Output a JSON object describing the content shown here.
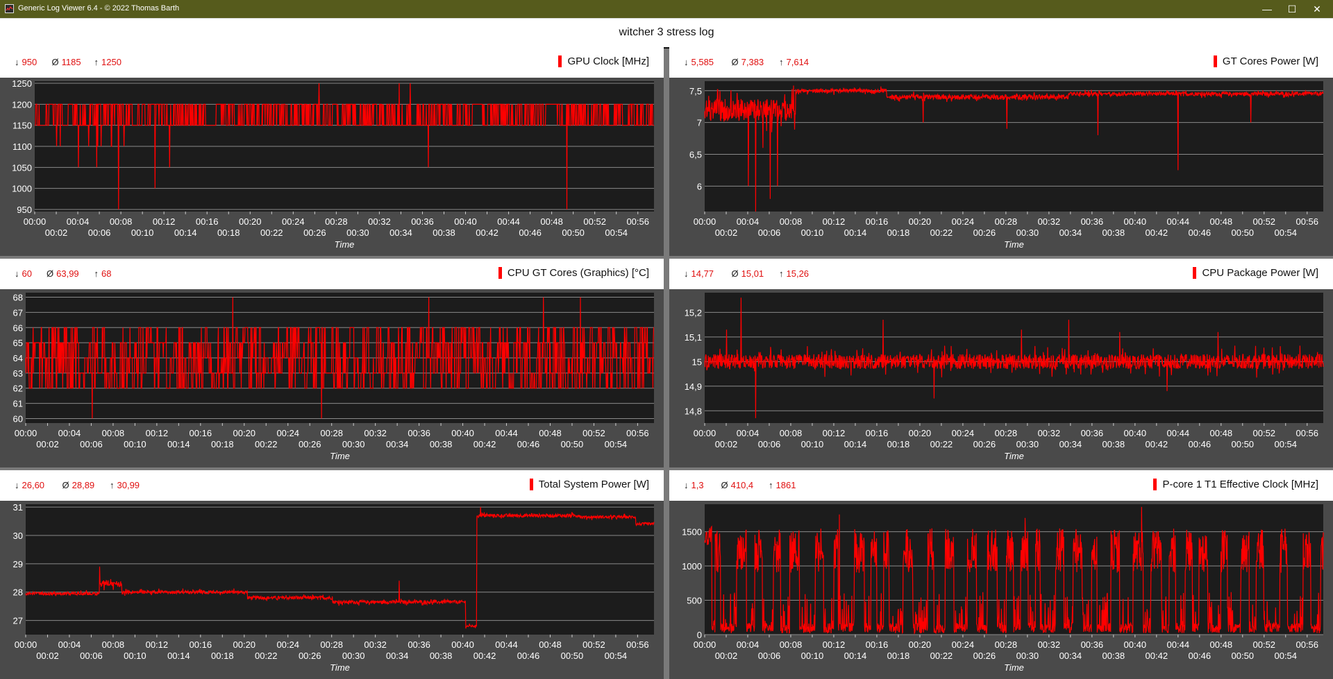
{
  "window": {
    "title": "Generic Log Viewer 6.4 - © 2022 Thomas Barth",
    "minimize": "—",
    "maximize": "☐",
    "close": "✕"
  },
  "log": {
    "title": "witcher 3 stress log"
  },
  "colors": {
    "series": "#ff0000",
    "plot_bg": "#1c1c1c",
    "panel_bg": "#4a4a4a",
    "grid": "#8a8a8a",
    "titlebar": "#565b1c"
  },
  "x_tick_labels": [
    "00:00",
    "00:02",
    "00:04",
    "00:06",
    "00:08",
    "00:10",
    "00:12",
    "00:14",
    "00:16",
    "00:18",
    "00:20",
    "00:22",
    "00:24",
    "00:26",
    "00:28",
    "00:30",
    "00:32",
    "00:34",
    "00:36",
    "00:38",
    "00:40",
    "00:42",
    "00:44",
    "00:46",
    "00:48",
    "00:50",
    "00:52",
    "00:54",
    "00:56"
  ],
  "chart_data": [
    {
      "type": "line",
      "title": "GPU Clock [MHz]",
      "xlabel": "Time",
      "stats": {
        "min": "950",
        "avg": "1185",
        "max": "1250"
      },
      "ylim": [
        945,
        1255
      ],
      "yticks": [
        950,
        1000,
        1050,
        1100,
        1150,
        1200,
        1250
      ],
      "ytick_labels": [
        "950",
        "1000",
        "1050",
        "1100",
        "1150",
        "1200",
        "1250"
      ],
      "pattern": "toggle",
      "base": 1150,
      "alt": 1200,
      "toggle_rate": 0.28,
      "spikes": [
        [
          120,
          1050
        ],
        [
          170,
          1050
        ],
        [
          230,
          950
        ],
        [
          330,
          1000
        ],
        [
          370,
          1050
        ],
        [
          780,
          1250
        ],
        [
          1000,
          1250
        ],
        [
          1030,
          1250
        ],
        [
          1080,
          1050
        ],
        [
          1460,
          950
        ]
      ],
      "minutes": 57.5
    },
    {
      "type": "line",
      "title": "GT Cores Power [W]",
      "xlabel": "Time",
      "stats": {
        "min": "5,585",
        "avg": "7,383",
        "max": "7,614"
      },
      "ylim": [
        5.6,
        7.65
      ],
      "yticks": [
        6,
        6.5,
        7,
        7.5
      ],
      "ytick_labels": [
        "6",
        "6,5",
        "7",
        "7,5"
      ],
      "pattern": "noise",
      "segments": [
        [
          0,
          7.2,
          0.35
        ],
        [
          250,
          7.5,
          0.06
        ],
        [
          500,
          7.4,
          0.08
        ],
        [
          1000,
          7.45,
          0.06
        ]
      ],
      "spikes": [
        [
          120,
          6.0
        ],
        [
          140,
          5.6
        ],
        [
          160,
          6.6
        ],
        [
          180,
          5.8
        ],
        [
          200,
          6.0
        ],
        [
          600,
          7.0
        ],
        [
          830,
          6.9
        ],
        [
          1080,
          6.8
        ],
        [
          1300,
          6.25
        ],
        [
          1500,
          7.0
        ]
      ],
      "minutes": 57.5
    },
    {
      "type": "line",
      "title": "CPU GT Cores (Graphics) [°C]",
      "xlabel": "Time",
      "stats": {
        "min": "60",
        "avg": "63,99",
        "max": "68"
      },
      "ylim": [
        59.7,
        68.3
      ],
      "yticks": [
        60,
        61,
        62,
        63,
        64,
        65,
        66,
        67,
        68
      ],
      "ytick_labels": [
        "60",
        "61",
        "62",
        "63",
        "64",
        "65",
        "66",
        "67",
        "68"
      ],
      "pattern": "jump",
      "levels": [
        61,
        62,
        63,
        64,
        65,
        66,
        67,
        68
      ],
      "center": 64,
      "spikes": [
        [
          180,
          60
        ],
        [
          560,
          68
        ],
        [
          800,
          60
        ],
        [
          1090,
          68
        ],
        [
          1400,
          68
        ],
        [
          1500,
          68
        ]
      ],
      "minutes": 57.5
    },
    {
      "type": "line",
      "title": "CPU Package Power [W]",
      "xlabel": "Time",
      "stats": {
        "min": "14,77",
        "avg": "15,01",
        "max": "15,26"
      },
      "ylim": [
        14.75,
        15.28
      ],
      "yticks": [
        14.8,
        14.9,
        15,
        15.1,
        15.2
      ],
      "ytick_labels": [
        "14,8",
        "14,9",
        "15",
        "15,1",
        "15,2"
      ],
      "pattern": "noise",
      "segments": [
        [
          0,
          15.0,
          0.06
        ]
      ],
      "spikes": [
        [
          60,
          15.13
        ],
        [
          100,
          15.26
        ],
        [
          140,
          14.77
        ],
        [
          490,
          15.17
        ],
        [
          630,
          14.85
        ],
        [
          870,
          15.13
        ],
        [
          1000,
          15.17
        ],
        [
          1140,
          15.12
        ],
        [
          1270,
          14.88
        ],
        [
          1410,
          15.12
        ]
      ],
      "minutes": 57.5
    },
    {
      "type": "line",
      "title": "Total System Power [W]",
      "xlabel": "Time",
      "stats": {
        "min": "26,60",
        "avg": "28,89",
        "max": "30,99"
      },
      "ylim": [
        26.5,
        31.1
      ],
      "yticks": [
        27,
        28,
        29,
        30,
        31
      ],
      "ytick_labels": [
        "27",
        "28",
        "29",
        "30",
        "31"
      ],
      "pattern": "noise",
      "segments": [
        [
          0,
          27.95,
          0.12
        ],
        [
          200,
          28.3,
          0.22
        ],
        [
          260,
          28.0,
          0.12
        ],
        [
          600,
          27.8,
          0.12
        ],
        [
          830,
          27.65,
          0.12
        ],
        [
          1190,
          26.8,
          0.08
        ],
        [
          1220,
          30.7,
          0.12
        ],
        [
          1500,
          30.65,
          0.1
        ],
        [
          1650,
          30.4,
          0.1
        ]
      ],
      "spikes": [
        [
          200,
          28.9
        ],
        [
          1010,
          28.4
        ],
        [
          1230,
          31.0
        ]
      ],
      "minutes": 57.5
    },
    {
      "type": "line",
      "title": "P-core 1 T1 Effective Clock [MHz]",
      "xlabel": "Time",
      "stats": {
        "min": "1,3",
        "avg": "410,4",
        "max": "1861"
      },
      "ylim": [
        0,
        1900
      ],
      "yticks": [
        0,
        500,
        1000,
        1500
      ],
      "ytick_labels": [
        "0",
        "500",
        "1000",
        "1500"
      ],
      "pattern": "bursty",
      "spikes": [
        [
          1200,
          1861
        ],
        [
          370,
          1750
        ],
        [
          880,
          1700
        ]
      ],
      "minutes": 57.5
    }
  ]
}
